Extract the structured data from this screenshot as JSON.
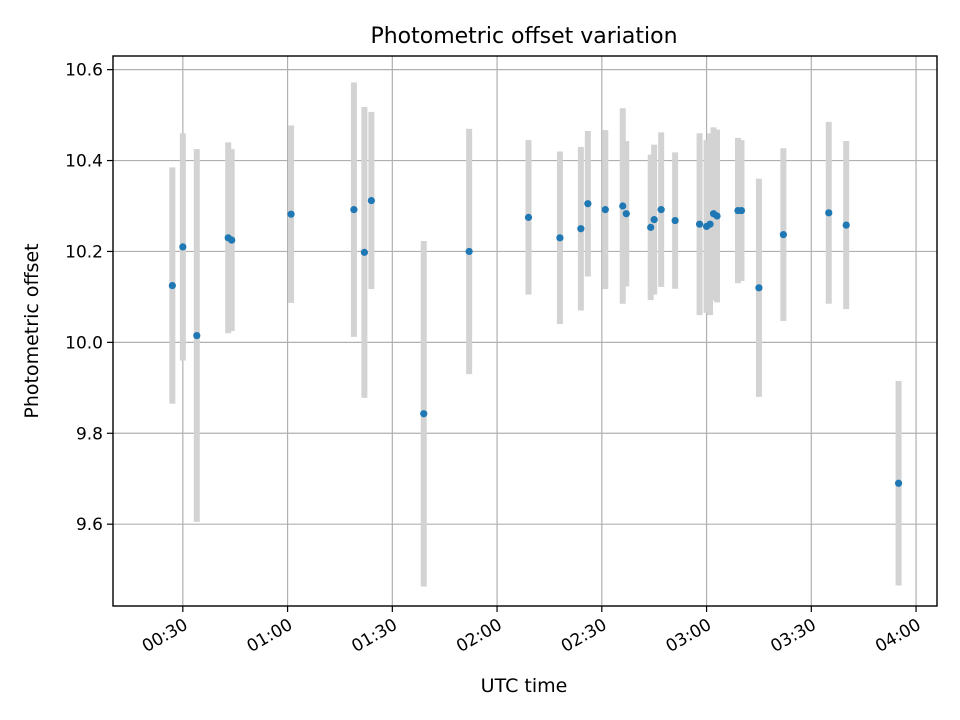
{
  "chart_data": {
    "type": "scatter",
    "title": "Photometric offset variation",
    "xlabel": "UTC time",
    "ylabel": "Photometric offset",
    "xlim": [
      "00:10",
      "04:06"
    ],
    "ylim": [
      9.42,
      10.63
    ],
    "x_ticks": [
      "00:30",
      "01:00",
      "01:30",
      "02:00",
      "02:30",
      "03:00",
      "03:30",
      "04:00"
    ],
    "y_ticks": [
      9.6,
      9.8,
      10.0,
      10.2,
      10.4,
      10.6
    ],
    "grid": true,
    "legend": "none",
    "colors": {
      "marker": "#1f77b4",
      "errorbar": "#d3d3d3"
    },
    "points": [
      {
        "x": "00:27",
        "y": 10.125,
        "err": 0.26
      },
      {
        "x": "00:30",
        "y": 10.21,
        "err": 0.25
      },
      {
        "x": "00:34",
        "y": 10.015,
        "err": 0.41
      },
      {
        "x": "00:43",
        "y": 10.23,
        "err": 0.21
      },
      {
        "x": "00:44",
        "y": 10.225,
        "err": 0.2
      },
      {
        "x": "01:01",
        "y": 10.282,
        "err": 0.195
      },
      {
        "x": "01:19",
        "y": 10.292,
        "err": 0.28
      },
      {
        "x": "01:22",
        "y": 10.198,
        "err": 0.32
      },
      {
        "x": "01:24",
        "y": 10.312,
        "err": 0.195
      },
      {
        "x": "01:39",
        "y": 9.843,
        "err": 0.38
      },
      {
        "x": "01:52",
        "y": 10.2,
        "err": 0.27
      },
      {
        "x": "02:09",
        "y": 10.275,
        "err": 0.17
      },
      {
        "x": "02:18",
        "y": 10.23,
        "err": 0.19
      },
      {
        "x": "02:24",
        "y": 10.25,
        "err": 0.18
      },
      {
        "x": "02:26",
        "y": 10.305,
        "err": 0.16
      },
      {
        "x": "02:31",
        "y": 10.292,
        "err": 0.175
      },
      {
        "x": "02:36",
        "y": 10.3,
        "err": 0.215
      },
      {
        "x": "02:37",
        "y": 10.283,
        "err": 0.16
      },
      {
        "x": "02:44",
        "y": 10.253,
        "err": 0.16
      },
      {
        "x": "02:45",
        "y": 10.27,
        "err": 0.165
      },
      {
        "x": "02:47",
        "y": 10.292,
        "err": 0.17
      },
      {
        "x": "02:51",
        "y": 10.268,
        "err": 0.15
      },
      {
        "x": "02:58",
        "y": 10.26,
        "err": 0.2
      },
      {
        "x": "03:00",
        "y": 10.255,
        "err": 0.19
      },
      {
        "x": "03:01",
        "y": 10.26,
        "err": 0.2
      },
      {
        "x": "03:02",
        "y": 10.283,
        "err": 0.19
      },
      {
        "x": "03:03",
        "y": 10.278,
        "err": 0.19
      },
      {
        "x": "03:09",
        "y": 10.29,
        "err": 0.16
      },
      {
        "x": "03:10",
        "y": 10.29,
        "err": 0.155
      },
      {
        "x": "03:15",
        "y": 10.12,
        "err": 0.24
      },
      {
        "x": "03:22",
        "y": 10.237,
        "err": 0.19
      },
      {
        "x": "03:35",
        "y": 10.285,
        "err": 0.2
      },
      {
        "x": "03:40",
        "y": 10.258,
        "err": 0.185
      },
      {
        "x": "03:55",
        "y": 9.69,
        "err": 0.225
      }
    ]
  }
}
